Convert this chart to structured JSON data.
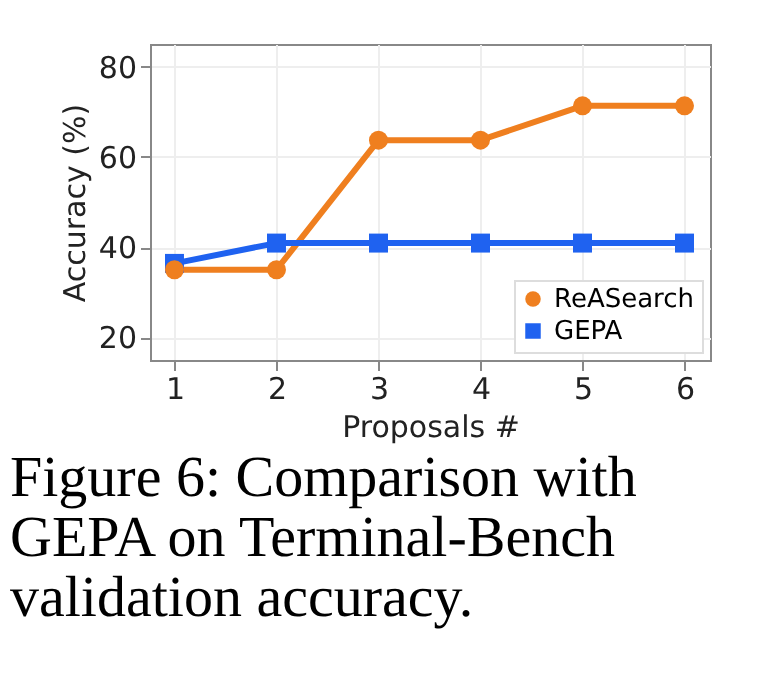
{
  "chart_data": {
    "type": "line",
    "xlabel": "Proposals #",
    "ylabel": "Accuracy (%)",
    "x": [
      1,
      2,
      3,
      4,
      5,
      6
    ],
    "series": [
      {
        "name": "ReASearch",
        "color": "#ef7f1f",
        "marker": "circle",
        "values": [
          35,
          35,
          63.7,
          63.7,
          71.3,
          71.3
        ]
      },
      {
        "name": "GEPA",
        "color": "#1f62f0",
        "marker": "square",
        "values": [
          36.4,
          40.9,
          40.9,
          40.9,
          40.9,
          40.9
        ]
      }
    ],
    "xlim": [
      0.76,
      6.25
    ],
    "xticks": [
      1,
      2,
      3,
      4,
      5,
      6
    ],
    "ylim": [
      15,
      85
    ],
    "yticks": [
      20,
      40,
      60,
      80
    ],
    "grid": true,
    "legend": "bottom right",
    "line_style": "solid",
    "annotations": [
      "Figure 6: Comparison with GEPA on Terminal-Bench validation accuracy."
    ]
  }
}
